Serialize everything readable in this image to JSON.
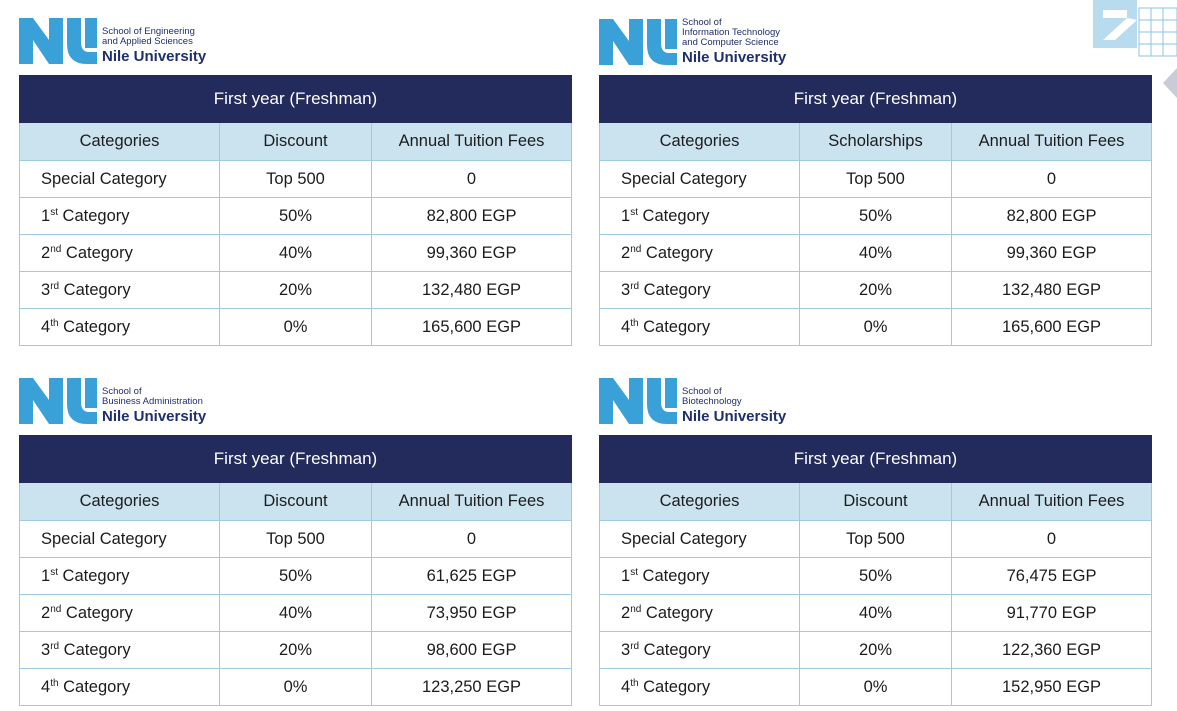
{
  "colors": {
    "title_bar": "#232a5c",
    "header_row": "#cbe3ef",
    "border": "#9ccbe3",
    "logo_blue": "#3aa0d8",
    "logo_navy": "#1f2f6b"
  },
  "panels": [
    {
      "logo": {
        "mark": "NU",
        "school_lines": [
          "School of Engineering",
          "and Applied Sciences"
        ],
        "name": "Nile University"
      },
      "title": "First year (Freshman)",
      "columns": [
        "Categories",
        "Discount",
        "Annual Tuition Fees"
      ],
      "rows": [
        {
          "cat": "Special Category",
          "ord": "",
          "suffix": "",
          "value": "Top 500",
          "fee": "0"
        },
        {
          "cat": "",
          "ord": "1",
          "sup": "st",
          "suffix": " Category",
          "value": "50%",
          "fee": "82,800 EGP"
        },
        {
          "cat": "",
          "ord": "2",
          "sup": "nd",
          "suffix": " Category",
          "value": "40%",
          "fee": "99,360 EGP"
        },
        {
          "cat": "",
          "ord": "3",
          "sup": "rd",
          "suffix": " Category",
          "value": "20%",
          "fee": "132,480 EGP"
        },
        {
          "cat": "",
          "ord": "4",
          "sup": "th",
          "suffix": " Category",
          "value": "0%",
          "fee": "165,600 EGP"
        }
      ]
    },
    {
      "logo": {
        "mark": "NU",
        "school_lines": [
          "School of",
          "Information Technology",
          "and Computer Science"
        ],
        "name": "Nile University"
      },
      "title": "First year (Freshman)",
      "columns": [
        "Categories",
        "Scholarships",
        "Annual Tuition Fees"
      ],
      "rows": [
        {
          "cat": "Special Category",
          "ord": "",
          "suffix": "",
          "value": "Top 500",
          "fee": "0"
        },
        {
          "cat": "",
          "ord": "1",
          "sup": "st",
          "suffix": " Category",
          "value": "50%",
          "fee": "82,800 EGP"
        },
        {
          "cat": "",
          "ord": "2",
          "sup": "nd",
          "suffix": " Category",
          "value": "40%",
          "fee": "99,360 EGP"
        },
        {
          "cat": "",
          "ord": "3",
          "sup": "rd",
          "suffix": " Category",
          "value": "20%",
          "fee": "132,480 EGP"
        },
        {
          "cat": "",
          "ord": "4",
          "sup": "th",
          "suffix": " Category",
          "value": "0%",
          "fee": "165,600 EGP"
        }
      ]
    },
    {
      "logo": {
        "mark": "NU",
        "school_lines": [
          "School of",
          "Business Administration"
        ],
        "name": "Nile University"
      },
      "title": "First year (Freshman)",
      "columns": [
        "Categories",
        "Discount",
        "Annual Tuition Fees"
      ],
      "rows": [
        {
          "cat": "Special Category",
          "ord": "",
          "suffix": "",
          "value": "Top 500",
          "fee": "0"
        },
        {
          "cat": "",
          "ord": "1",
          "sup": "st",
          "suffix": " Category",
          "value": "50%",
          "fee": "61,625 EGP"
        },
        {
          "cat": "",
          "ord": "2",
          "sup": "nd",
          "suffix": " Category",
          "value": "40%",
          "fee": "73,950 EGP"
        },
        {
          "cat": "",
          "ord": "3",
          "sup": "rd",
          "suffix": " Category",
          "value": "20%",
          "fee": "98,600 EGP"
        },
        {
          "cat": "",
          "ord": "4",
          "sup": "th",
          "suffix": " Category",
          "value": "0%",
          "fee": "123,250 EGP"
        }
      ]
    },
    {
      "logo": {
        "mark": "NU",
        "school_lines": [
          "School of",
          "Biotechnology"
        ],
        "name": "Nile University"
      },
      "title": "First year (Freshman)",
      "columns": [
        "Categories",
        "Discount",
        "Annual Tuition Fees"
      ],
      "rows": [
        {
          "cat": "Special Category",
          "ord": "",
          "suffix": "",
          "value": "Top 500",
          "fee": "0"
        },
        {
          "cat": "",
          "ord": "1",
          "sup": "st",
          "suffix": " Category",
          "value": "50%",
          "fee": "76,475 EGP"
        },
        {
          "cat": "",
          "ord": "2",
          "sup": "nd",
          "suffix": " Category",
          "value": "40%",
          "fee": "91,770 EGP"
        },
        {
          "cat": "",
          "ord": "3",
          "sup": "rd",
          "suffix": " Category",
          "value": "20%",
          "fee": "122,360 EGP"
        },
        {
          "cat": "",
          "ord": "4",
          "sup": "th",
          "suffix": " Category",
          "value": "0%",
          "fee": "152,950 EGP"
        }
      ]
    }
  ]
}
